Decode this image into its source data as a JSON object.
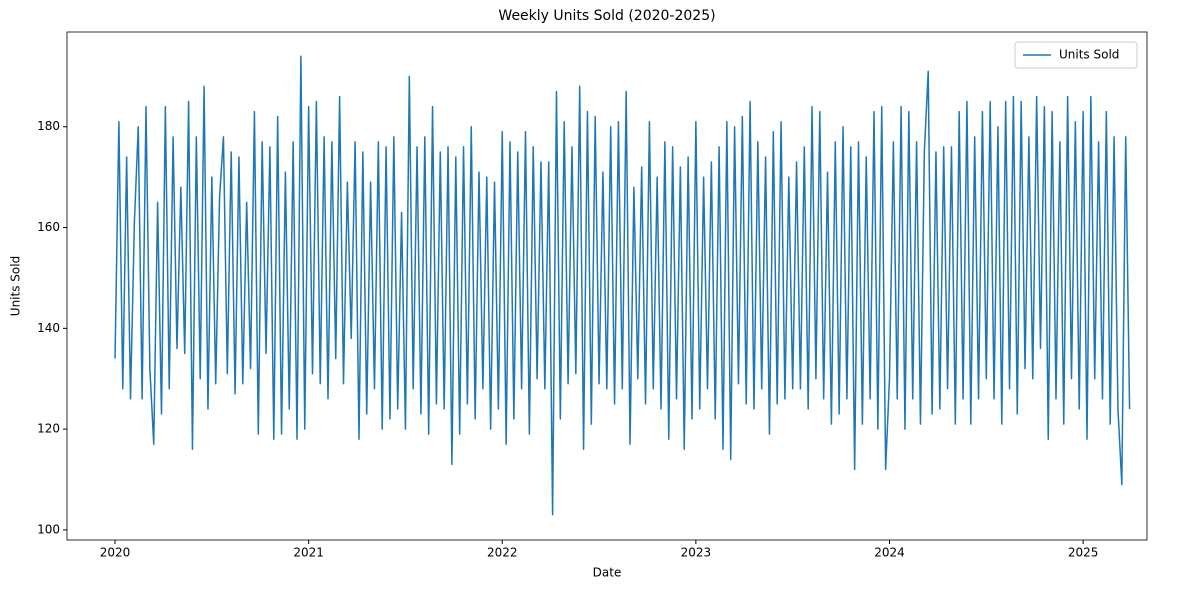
{
  "chart_data": {
    "type": "line",
    "title": "Weekly Units Sold (2020-2025)",
    "x_label": "Date",
    "y_label": "Units Sold",
    "x": [
      2020,
      2020.02,
      2020.04,
      2020.06,
      2020.08,
      2020.1,
      2020.12,
      2020.14,
      2020.16,
      2020.18,
      2020.2,
      2020.22,
      2020.24,
      2020.26,
      2020.28,
      2020.3,
      2020.32,
      2020.34,
      2020.36,
      2020.38,
      2020.4,
      2020.42,
      2020.44,
      2020.46,
      2020.48,
      2020.5,
      2020.52,
      2020.54,
      2020.56,
      2020.58,
      2020.6,
      2020.62,
      2020.64,
      2020.66,
      2020.68,
      2020.7,
      2020.72,
      2020.74,
      2020.76,
      2020.78,
      2020.8,
      2020.82,
      2020.84,
      2020.86,
      2020.88,
      2020.9,
      2020.92,
      2020.94,
      2020.96,
      2020.98,
      2021,
      2021.02,
      2021.04,
      2021.06,
      2021.08,
      2021.1,
      2021.12,
      2021.14,
      2021.16,
      2021.18,
      2021.2,
      2021.22,
      2021.24,
      2021.26,
      2021.28,
      2021.3,
      2021.32,
      2021.34,
      2021.36,
      2021.38,
      2021.4,
      2021.42,
      2021.44,
      2021.46,
      2021.48,
      2021.5,
      2021.52,
      2021.54,
      2021.56,
      2021.58,
      2021.6,
      2021.62,
      2021.64,
      2021.66,
      2021.68,
      2021.7,
      2021.72,
      2021.74,
      2021.76,
      2021.78,
      2021.8,
      2021.82,
      2021.84,
      2021.86,
      2021.88,
      2021.9,
      2021.92,
      2021.94,
      2021.96,
      2021.98,
      2022,
      2022.02,
      2022.04,
      2022.06,
      2022.08,
      2022.1,
      2022.12,
      2022.14,
      2022.16,
      2022.18,
      2022.2,
      2022.22,
      2022.24,
      2022.26,
      2022.28,
      2022.3,
      2022.32,
      2022.34,
      2022.36,
      2022.38,
      2022.4,
      2022.42,
      2022.44,
      2022.46,
      2022.48,
      2022.5,
      2022.52,
      2022.54,
      2022.56,
      2022.58,
      2022.6,
      2022.62,
      2022.64,
      2022.66,
      2022.68,
      2022.7,
      2022.72,
      2022.74,
      2022.76,
      2022.78,
      2022.8,
      2022.82,
      2022.84,
      2022.86,
      2022.88,
      2022.9,
      2022.92,
      2022.94,
      2022.96,
      2022.98,
      2023,
      2023.02,
      2023.04,
      2023.06,
      2023.08,
      2023.1,
      2023.12,
      2023.14,
      2023.16,
      2023.18,
      2023.2,
      2023.22,
      2023.24,
      2023.26,
      2023.28,
      2023.3,
      2023.32,
      2023.34,
      2023.36,
      2023.38,
      2023.4,
      2023.42,
      2023.44,
      2023.46,
      2023.48,
      2023.5,
      2023.52,
      2023.54,
      2023.56,
      2023.58,
      2023.6,
      2023.62,
      2023.64,
      2023.66,
      2023.68,
      2023.7,
      2023.72,
      2023.74,
      2023.76,
      2023.78,
      2023.8,
      2023.82,
      2023.84,
      2023.86,
      2023.88,
      2023.9,
      2023.92,
      2023.94,
      2023.96,
      2023.98,
      2024,
      2024.02,
      2024.04,
      2024.06,
      2024.08,
      2024.1,
      2024.12,
      2024.14,
      2024.16,
      2024.18,
      2024.2,
      2024.22,
      2024.24,
      2024.26,
      2024.28,
      2024.3,
      2024.32,
      2024.34,
      2024.36,
      2024.38,
      2024.4,
      2024.42,
      2024.44,
      2024.46,
      2024.48,
      2024.5,
      2024.52,
      2024.54,
      2024.56,
      2024.58,
      2024.6,
      2024.62,
      2024.64,
      2024.66,
      2024.68,
      2024.7,
      2024.72,
      2024.74,
      2024.76,
      2024.78,
      2024.8,
      2024.82,
      2024.84,
      2024.86,
      2024.88,
      2024.9,
      2024.92,
      2024.94,
      2024.96,
      2024.98,
      2025,
      2025.02,
      2025.04,
      2025.06,
      2025.08,
      2025.1,
      2025.12,
      2025.14,
      2025.16,
      2025.18,
      2025.2,
      2025.22,
      2025.24
    ],
    "series": [
      {
        "name": "Units Sold",
        "color": "#1f77b4",
        "values": [
          134,
          181,
          128,
          174,
          126,
          161,
          180,
          126,
          184,
          132,
          117,
          165,
          123,
          184,
          128,
          178,
          136,
          168,
          135,
          185,
          116,
          178,
          130,
          188,
          124,
          170,
          129,
          166,
          178,
          131,
          175,
          127,
          174,
          129,
          165,
          132,
          183,
          119,
          177,
          135,
          176,
          118,
          182,
          119,
          171,
          124,
          177,
          118,
          194,
          120,
          184,
          131,
          185,
          129,
          178,
          126,
          177,
          134,
          186,
          129,
          169,
          138,
          177,
          118,
          175,
          123,
          169,
          128,
          177,
          120,
          176,
          122,
          178,
          124,
          163,
          120,
          190,
          128,
          176,
          123,
          178,
          119,
          184,
          125,
          175,
          124,
          176,
          113,
          174,
          119,
          176,
          125,
          180,
          122,
          171,
          128,
          170,
          120,
          169,
          124,
          179,
          117,
          177,
          122,
          175,
          128,
          179,
          119,
          176,
          130,
          173,
          128,
          173,
          103,
          187,
          122,
          181,
          129,
          176,
          131,
          188,
          116,
          183,
          121,
          182,
          129,
          171,
          128,
          180,
          125,
          181,
          128,
          187,
          117,
          168,
          130,
          172,
          125,
          181,
          128,
          170,
          124,
          177,
          118,
          176,
          126,
          172,
          116,
          174,
          122,
          181,
          124,
          170,
          128,
          173,
          122,
          176,
          116,
          181,
          114,
          180,
          129,
          182,
          125,
          185,
          124,
          177,
          128,
          174,
          119,
          179,
          125,
          181,
          126,
          170,
          128,
          173,
          128,
          176,
          124,
          184,
          130,
          183,
          126,
          171,
          121,
          177,
          123,
          180,
          126,
          176,
          112,
          177,
          121,
          174,
          126,
          183,
          120,
          184,
          112,
          130,
          177,
          126,
          184,
          120,
          183,
          126,
          177,
          121,
          175,
          191,
          123,
          175,
          124,
          176,
          128,
          176,
          121,
          183,
          126,
          185,
          121,
          178,
          126,
          183,
          130,
          185,
          126,
          180,
          121,
          185,
          128,
          186,
          123,
          185,
          132,
          178,
          130,
          186,
          136,
          184,
          118,
          183,
          126,
          177,
          121,
          186,
          130,
          181,
          124,
          183,
          118,
          186,
          130,
          177,
          126,
          183,
          121,
          178,
          124,
          109,
          178,
          124
        ]
      }
    ],
    "xlim": [
      2019.752,
      2025.33
    ],
    "xticks": [
      2020,
      2021,
      2022,
      2023,
      2024,
      2025
    ],
    "ylim": [
      98,
      198.8
    ],
    "yticks": [
      100,
      120,
      140,
      160,
      180
    ],
    "legend": "upper right",
    "grid": false
  }
}
